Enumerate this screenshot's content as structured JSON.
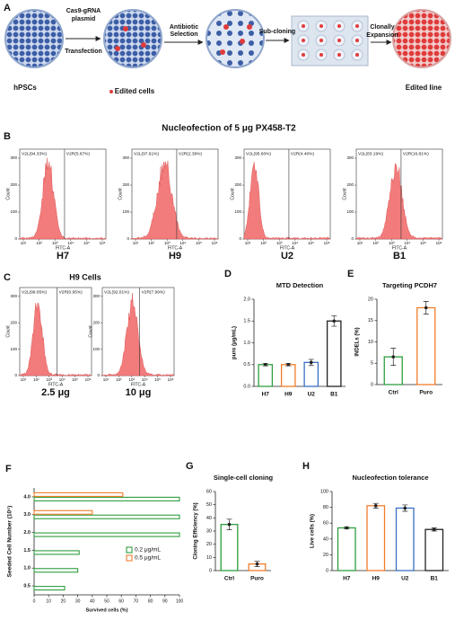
{
  "diagram": {
    "panel": "A",
    "arrow_labels": [
      [
        "Cas9-gRNA",
        "plasmid"
      ],
      [
        "Antibiotic",
        "Selection"
      ],
      [
        "Sub-cloning"
      ],
      [
        "Clonally",
        "Expansion"
      ]
    ],
    "below_arrow": "Transfection",
    "start_label": "hPSCs",
    "edited_label": "Edited cells",
    "end_label": "Edited line"
  },
  "flow": {
    "y_label": "Count",
    "x_label": "FITC-A",
    "yticks": [
      0,
      100,
      200,
      300
    ],
    "xticks": [
      "10¹",
      "10²",
      "10³",
      "10⁴",
      "10⁵",
      "10⁶"
    ],
    "B": {
      "panel": "B",
      "title": "Nucleofection of 5 μg PX458-T2",
      "plots": [
        {
          "name": "H7",
          "gates": [
            "V2L(94.33%)",
            "V2R(5.67%)"
          ]
        },
        {
          "name": "H9",
          "gates": [
            "V2L(97.61%)",
            "V2R(2.39%)"
          ]
        },
        {
          "name": "U2",
          "gates": [
            "V2L(95.60%)",
            "V2R(4.40%)"
          ]
        },
        {
          "name": "B1",
          "gates": [
            "V2L(83.19%)",
            "V2R(16.81%)"
          ]
        }
      ]
    },
    "C": {
      "panel": "C",
      "title": "H9 Cells",
      "plots": [
        {
          "name": "2.5 μg",
          "gates": [
            "V2L(99.05%)",
            "V2R(0.95%)"
          ]
        },
        {
          "name": "10 μg",
          "gates": [
            "V2L(92.01%)",
            "V2R(7.99%)"
          ]
        }
      ]
    }
  },
  "chart_data": [
    {
      "type": "bar",
      "panel": "D",
      "title": "MTD Detection",
      "y_label": "puro (μg/mL)",
      "categories": [
        "H7",
        "H9",
        "U2",
        "B1"
      ],
      "values": [
        0.5,
        0.5,
        0.55,
        1.5
      ],
      "errors": [
        0.03,
        0.03,
        0.07,
        0.12
      ],
      "colors": [
        "#2e9e3e",
        "#f07d2a",
        "#3b6fc4",
        "#222222"
      ],
      "ylim": [
        0,
        2
      ],
      "yticks": [
        {
          "value": 0,
          "label": "0.0"
        },
        0.5,
        {
          "value": 1,
          "label": "1.0"
        },
        1.5,
        {
          "value": 2,
          "label": "2.0"
        }
      ]
    },
    {
      "type": "bar",
      "panel": "E",
      "title": "Targeting PCDH7",
      "y_label": "INDELs (%)",
      "categories": [
        "Ctrl",
        "Puro"
      ],
      "values": [
        6.5,
        18
      ],
      "errors": [
        2,
        1.5
      ],
      "colors": [
        "#2e9e3e",
        "#f07d2a"
      ],
      "ylim": [
        0,
        20
      ],
      "yticks": [
        0,
        5,
        10,
        15,
        20
      ]
    },
    {
      "type": "barh",
      "panel": "F",
      "y_label": "Seeded Cell Number (10⁵)",
      "x_label": "Survived  cells (%)",
      "categories": [
        "0.5",
        "1.0",
        "1.5",
        "2.0",
        "3.0",
        "4.0"
      ],
      "series": [
        {
          "name": "0.2 μg/mL",
          "color": "#2e9e3e",
          "values": [
            21,
            30,
            31,
            100,
            100,
            100
          ]
        },
        {
          "name": "0.5 μg/mL",
          "color": "#f07d2a",
          "values": [
            0,
            0,
            0,
            0,
            40,
            61
          ]
        }
      ],
      "xlim": [
        0,
        100
      ],
      "xticks": [
        0,
        10,
        20,
        30,
        40,
        50,
        60,
        70,
        80,
        90,
        100
      ]
    },
    {
      "type": "bar",
      "panel": "G",
      "title": "Single-cell cloning",
      "y_label": "Cloning Efficiency (%)",
      "categories": [
        "Ctrl",
        "Puro"
      ],
      "values": [
        35,
        5
      ],
      "errors": [
        4,
        2
      ],
      "colors": [
        "#2e9e3e",
        "#f07d2a"
      ],
      "ylim": [
        0,
        60
      ],
      "yticks": [
        0,
        10,
        20,
        30,
        40,
        50,
        60
      ]
    },
    {
      "type": "bar",
      "panel": "H",
      "title": "Nucleofection tolerance",
      "y_label": "Live cells (%)",
      "categories": [
        "H7",
        "H9",
        "U2",
        "B1"
      ],
      "values": [
        54,
        82,
        79,
        52
      ],
      "errors": [
        1,
        3,
        4,
        2
      ],
      "colors": [
        "#2e9e3e",
        "#f07d2a",
        "#3b6fc4",
        "#222222"
      ],
      "ylim": [
        0,
        100
      ],
      "yticks": [
        0,
        20,
        40,
        60,
        80,
        100
      ]
    }
  ]
}
